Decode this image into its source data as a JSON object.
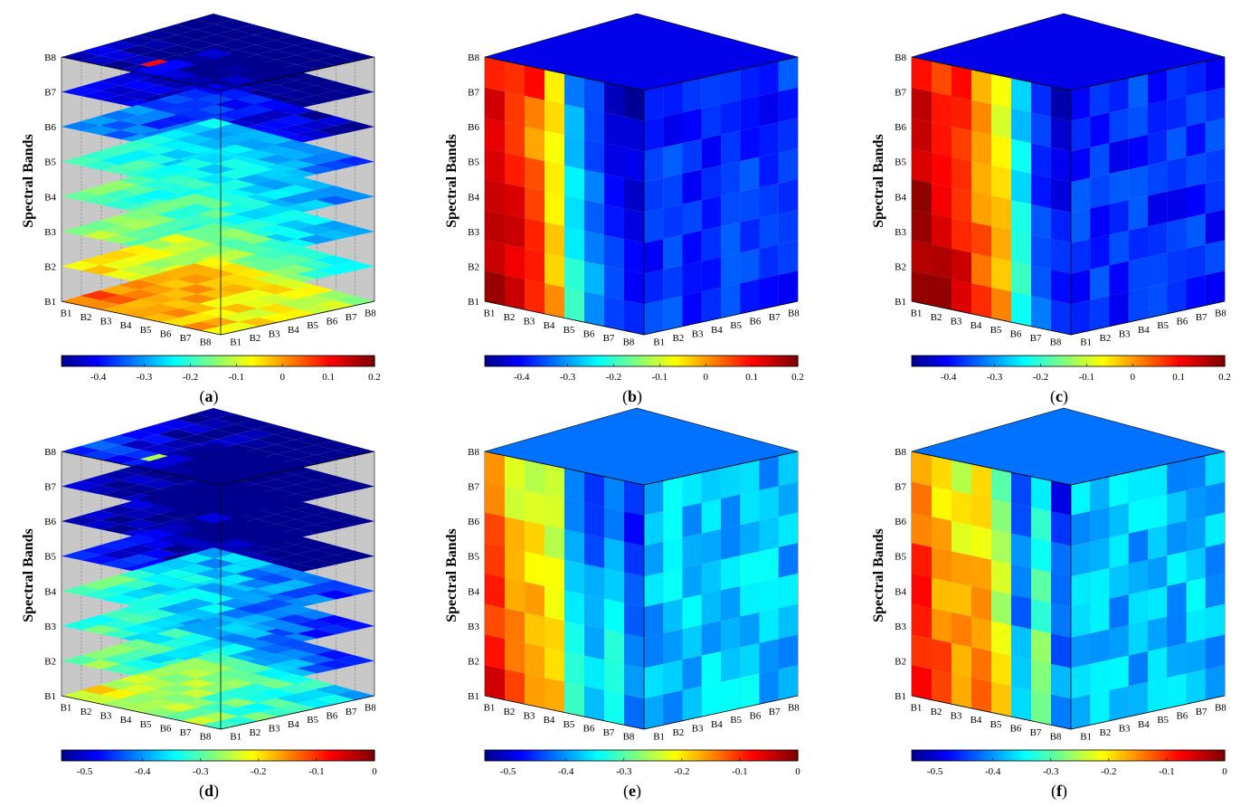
{
  "figure": {
    "panels": [
      {
        "letter": "a",
        "view": "slices",
        "row": 0,
        "col": 0
      },
      {
        "letter": "b",
        "view": "slab-x",
        "row": 0,
        "col": 1
      },
      {
        "letter": "c",
        "view": "slab-y",
        "row": 0,
        "col": 2
      },
      {
        "letter": "d",
        "view": "slices",
        "row": 1,
        "col": 0
      },
      {
        "letter": "e",
        "view": "slab-x",
        "row": 1,
        "col": 1
      },
      {
        "letter": "f",
        "view": "slab-y",
        "row": 1,
        "col": 2
      }
    ]
  },
  "chart_data": [
    {
      "type": "heatmap",
      "panel": "(a)",
      "description_of_view": "horizontal slices of an 8x8x8 correlation cube",
      "ylabel": "Spectral Bands",
      "axis_ticks": [
        "B1",
        "B2",
        "B3",
        "B4",
        "B5",
        "B6",
        "B7",
        "B8"
      ],
      "colorbar": {
        "min": -0.48,
        "max": 0.2,
        "ticks": [
          -0.4,
          -0.3,
          -0.2,
          -0.1,
          0,
          0.1,
          0.2
        ]
      },
      "slice_mean_values": {
        "B1": 0.05,
        "B2": -0.05,
        "B3": -0.12,
        "B4": -0.15,
        "B5": -0.18,
        "B6": -0.3,
        "B7": -0.38,
        "B8": -0.44
      },
      "highlight_value": 0.1
    },
    {
      "type": "heatmap",
      "panel": "(b)",
      "description_of_view": "vertical slabs along first band axis",
      "ylabel": "Spectral Bands",
      "axis_ticks": [
        "B1",
        "B2",
        "B3",
        "B4",
        "B5",
        "B6",
        "B7",
        "B8"
      ],
      "colorbar": {
        "min": -0.48,
        "max": 0.2,
        "ticks": [
          -0.4,
          -0.3,
          -0.2,
          -0.1,
          0,
          0.1,
          0.2
        ]
      },
      "front_face_columns_mean": [
        0.1,
        0.06,
        0.0,
        -0.08,
        -0.3,
        -0.38,
        -0.42,
        -0.45
      ],
      "highlight_value": 0.1
    },
    {
      "type": "heatmap",
      "panel": "(c)",
      "description_of_view": "vertical slabs along second band axis",
      "ylabel": "Spectral Bands",
      "axis_ticks": [
        "B1",
        "B2",
        "B3",
        "B4",
        "B5",
        "B6",
        "B7",
        "B8"
      ],
      "colorbar": {
        "min": -0.48,
        "max": 0.2,
        "ticks": [
          -0.4,
          -0.3,
          -0.2,
          -0.1,
          0,
          0.1,
          0.2
        ]
      },
      "front_face_columns_mean": [
        0.12,
        0.08,
        0.05,
        -0.02,
        -0.08,
        -0.28,
        -0.4,
        -0.45
      ],
      "highlight_value": 0.1
    },
    {
      "type": "heatmap",
      "panel": "(d)",
      "description_of_view": "horizontal slices of an 8x8x8 correlation cube",
      "ylabel": "Spectral Bands",
      "axis_ticks": [
        "B1",
        "B2",
        "B3",
        "B4",
        "B5",
        "B6",
        "B7",
        "B8"
      ],
      "colorbar": {
        "min": -0.54,
        "max": 0.0,
        "ticks": [
          -0.5,
          -0.4,
          -0.3,
          -0.2,
          -0.1,
          0
        ]
      },
      "slice_mean_values": {
        "B1": -0.2,
        "B2": -0.28,
        "B3": -0.3,
        "B4": -0.29,
        "B5": -0.45,
        "B6": -0.5,
        "B7": -0.48,
        "B8": -0.45
      },
      "highlight_value": -0.25
    },
    {
      "type": "heatmap",
      "panel": "(e)",
      "description_of_view": "vertical slabs along first band axis",
      "ylabel": "Spectral Bands",
      "axis_ticks": [
        "B1",
        "B2",
        "B3",
        "B4",
        "B5",
        "B6",
        "B7",
        "B8"
      ],
      "colorbar": {
        "min": -0.54,
        "max": 0.0,
        "ticks": [
          -0.5,
          -0.4,
          -0.3,
          -0.2,
          -0.1,
          0
        ]
      },
      "front_face_columns_mean": [
        -0.15,
        -0.22,
        -0.22,
        -0.25,
        -0.42,
        -0.45,
        -0.4,
        -0.48
      ],
      "highlight_value": -0.25
    },
    {
      "type": "heatmap",
      "panel": "(f)",
      "description_of_view": "vertical slabs along second band axis",
      "ylabel": "Spectral Bands",
      "axis_ticks": [
        "B1",
        "B2",
        "B3",
        "B4",
        "B5",
        "B6",
        "B7",
        "B8"
      ],
      "colorbar": {
        "min": -0.54,
        "max": 0.0,
        "ticks": [
          -0.5,
          -0.4,
          -0.3,
          -0.2,
          -0.1,
          0
        ]
      },
      "front_face_columns_mean": [
        -0.15,
        -0.2,
        -0.22,
        -0.22,
        -0.28,
        -0.45,
        -0.35,
        -0.47
      ],
      "highlight_value": -0.25
    }
  ]
}
